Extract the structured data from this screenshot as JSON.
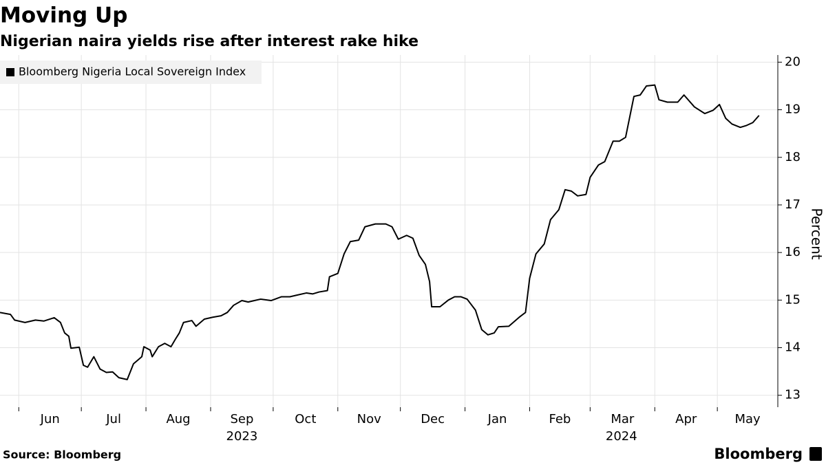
{
  "chart_data": {
    "type": "line",
    "title": "Moving Up",
    "subtitle": "Nigerian naira yields rise after interest rake hike",
    "y_label": "Percent",
    "source": "Source: Bloomberg",
    "brand": "Bloomberg",
    "legend": "top-left",
    "grid": true,
    "xlim": [
      0,
      373
    ],
    "ylim": [
      12.75,
      20.15
    ],
    "yticks": [
      13,
      14,
      15,
      16,
      17,
      18,
      19,
      20
    ],
    "xticks": [
      {
        "value": 9,
        "label": "Jun"
      },
      {
        "value": 39,
        "label": "Jul"
      },
      {
        "value": 70,
        "label": "Aug"
      },
      {
        "value": 101,
        "label": "Sep"
      },
      {
        "value": 131,
        "label": "Oct"
      },
      {
        "value": 162,
        "label": "Nov"
      },
      {
        "value": 192,
        "label": "Dec"
      },
      {
        "value": 223,
        "label": "Jan"
      },
      {
        "value": 254,
        "label": "Feb"
      },
      {
        "value": 283,
        "label": "Mar"
      },
      {
        "value": 314,
        "label": "Apr"
      },
      {
        "value": 344,
        "label": "May"
      }
    ],
    "year_ticks": [
      {
        "value": 116,
        "label": "2023"
      },
      {
        "value": 298,
        "label": "2024"
      }
    ],
    "x": [
      0,
      5,
      7,
      12,
      17,
      21,
      26,
      29,
      31,
      33,
      34,
      38,
      40,
      42,
      45,
      48,
      51,
      54,
      57,
      61,
      64,
      68,
      69,
      72,
      73,
      76,
      79,
      82,
      84,
      86,
      88,
      92,
      94,
      98,
      102,
      106,
      109,
      112,
      116,
      119,
      122,
      125,
      130,
      135,
      139,
      142,
      147,
      150,
      153,
      157,
      158,
      162,
      165,
      168,
      172,
      175,
      180,
      185,
      188,
      191,
      195,
      198,
      201,
      204,
      206,
      207,
      211,
      215,
      218,
      221,
      224,
      228,
      231,
      234,
      237,
      239,
      244,
      249,
      252,
      254,
      257,
      261,
      264,
      268,
      271,
      274,
      277,
      281,
      283,
      287,
      290,
      294,
      297,
      300,
      304,
      307,
      310,
      314,
      316,
      320,
      325,
      328,
      333,
      338,
      342,
      345,
      348,
      351,
      355,
      358,
      361,
      364
    ],
    "series": [
      {
        "name": "Bloomberg Nigeria Local Sovereign Index",
        "color": "#000000",
        "values": [
          14.74,
          14.7,
          14.58,
          14.53,
          14.58,
          14.56,
          14.63,
          14.53,
          14.31,
          14.24,
          13.99,
          14.01,
          13.63,
          13.59,
          13.81,
          13.55,
          13.48,
          13.49,
          13.37,
          13.33,
          13.66,
          13.81,
          14.02,
          13.95,
          13.81,
          14.02,
          14.09,
          14.02,
          14.17,
          14.31,
          14.53,
          14.57,
          14.45,
          14.6,
          14.64,
          14.67,
          14.74,
          14.89,
          14.99,
          14.96,
          14.99,
          15.02,
          14.99,
          15.07,
          15.07,
          15.1,
          15.15,
          15.13,
          15.17,
          15.2,
          15.49,
          15.56,
          15.97,
          16.23,
          16.26,
          16.54,
          16.6,
          16.6,
          16.54,
          16.28,
          16.36,
          16.3,
          15.94,
          15.75,
          15.39,
          14.86,
          14.86,
          15.0,
          15.07,
          15.07,
          15.02,
          14.79,
          14.38,
          14.27,
          14.31,
          14.44,
          14.45,
          14.64,
          14.74,
          15.46,
          15.97,
          16.18,
          16.69,
          16.9,
          17.32,
          17.29,
          17.19,
          17.22,
          17.58,
          17.84,
          17.91,
          18.34,
          18.34,
          18.42,
          19.28,
          19.31,
          19.5,
          19.52,
          19.21,
          19.16,
          19.16,
          19.31,
          19.06,
          18.92,
          18.99,
          19.11,
          18.82,
          18.7,
          18.63,
          18.67,
          18.73,
          18.88
        ]
      }
    ]
  }
}
